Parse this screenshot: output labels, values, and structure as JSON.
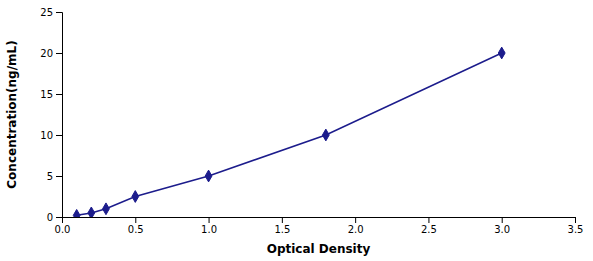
{
  "chart_data": {
    "type": "line",
    "x": [
      0.1,
      0.2,
      0.3,
      0.5,
      1.0,
      1.8,
      3.0
    ],
    "values": [
      0.2,
      0.5,
      1.0,
      2.5,
      5.0,
      10.0,
      20.0
    ],
    "xlabel": "Optical Density",
    "ylabel": "Concentration(ng/mL)",
    "color": "#1C1C8C",
    "marker": "diamond",
    "xlim": [
      0,
      3.5
    ],
    "ylim": [
      0,
      25
    ],
    "xticks": [
      {
        "value": 0,
        "label": "0.0"
      },
      0.5,
      {
        "value": 1.0,
        "label": "1.0"
      },
      1.5,
      {
        "value": 2.0,
        "label": "2.0"
      },
      2.5,
      {
        "value": 3.0,
        "label": "3.0"
      },
      3.5
    ],
    "yticks": [
      0,
      5,
      10,
      15,
      20,
      25
    ],
    "grid": false
  }
}
